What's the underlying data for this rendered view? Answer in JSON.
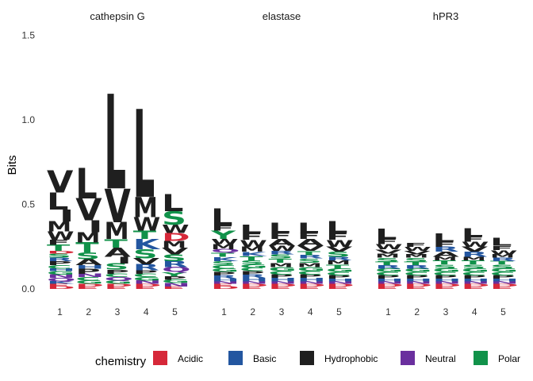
{
  "chart_data": {
    "type": "sequence-logo",
    "ylabel": "Bits",
    "ylim": [
      0,
      1.5
    ],
    "yticks": [
      "0.0",
      "0.5",
      "1.0",
      "1.5"
    ],
    "positions": [
      "1",
      "2",
      "3",
      "4",
      "5"
    ],
    "legend": {
      "title": "chemistry",
      "items": [
        {
          "label": "Acidic",
          "color": "#d62839"
        },
        {
          "label": "Basic",
          "color": "#2356a0"
        },
        {
          "label": "Hydrophobic",
          "color": "#1f1f1f"
        },
        {
          "label": "Neutral",
          "color": "#6a2f9e"
        },
        {
          "label": "Polar",
          "color": "#11924a"
        }
      ]
    },
    "panels": [
      {
        "name": "cathepsin G",
        "positions": [
          {
            "pos": "1",
            "letters": [
              [
                "D",
                0.015
              ],
              [
                "E",
                0.015
              ],
              [
                "K",
                0.015
              ],
              [
                "Q",
                0.02
              ],
              [
                "N",
                0.02
              ],
              [
                "G",
                0.02
              ],
              [
                "H",
                0.015
              ],
              [
                "C",
                0.02
              ],
              [
                "P",
                0.025
              ],
              [
                "R",
                0.02
              ],
              [
                "S",
                0.025
              ],
              [
                "D",
                0.015
              ],
              [
                "T",
                0.035
              ],
              [
                "F",
                0.03
              ],
              [
                "W",
                0.05
              ],
              [
                "M",
                0.06
              ],
              [
                "I",
                0.07
              ],
              [
                "L",
                0.1
              ],
              [
                "V",
                0.13
              ]
            ]
          },
          {
            "pos": "2",
            "letters": [
              [
                "E",
                0.015
              ],
              [
                "D",
                0.015
              ],
              [
                "G",
                0.02
              ],
              [
                "C",
                0.02
              ],
              [
                "N",
                0.02
              ],
              [
                "P",
                0.03
              ],
              [
                "H",
                0.02
              ],
              [
                "A",
                0.035
              ],
              [
                "S",
                0.04
              ],
              [
                "T",
                0.06
              ],
              [
                "M",
                0.06
              ],
              [
                "I",
                0.07
              ],
              [
                "V",
                0.13
              ],
              [
                "L",
                0.18
              ]
            ]
          },
          {
            "pos": "3",
            "letters": [
              [
                "E",
                0.015
              ],
              [
                "D",
                0.015
              ],
              [
                "G",
                0.02
              ],
              [
                "Q",
                0.02
              ],
              [
                "C",
                0.02
              ],
              [
                "P",
                0.025
              ],
              [
                "S",
                0.035
              ],
              [
                "I",
                0.04
              ],
              [
                "A",
                0.055
              ],
              [
                "T",
                0.05
              ],
              [
                "M",
                0.1
              ],
              [
                "V",
                0.2
              ],
              [
                "L",
                0.56
              ]
            ]
          },
          {
            "pos": "4",
            "letters": [
              [
                "E",
                0.015
              ],
              [
                "D",
                0.015
              ],
              [
                "N",
                0.02
              ],
              [
                "G",
                0.02
              ],
              [
                "C",
                0.02
              ],
              [
                "P",
                0.02
              ],
              [
                "R",
                0.035
              ],
              [
                "V",
                0.035
              ],
              [
                "S",
                0.055
              ],
              [
                "K",
                0.06
              ],
              [
                "T",
                0.05
              ],
              [
                "W",
                0.08
              ],
              [
                "M",
                0.12
              ],
              [
                "L",
                0.52
              ]
            ]
          },
          {
            "pos": "5",
            "letters": [
              [
                "E",
                0.015
              ],
              [
                "N",
                0.02
              ],
              [
                "G",
                0.02
              ],
              [
                "P",
                0.02
              ],
              [
                "Y",
                0.025
              ],
              [
                "Q",
                0.03
              ],
              [
                "R",
                0.035
              ],
              [
                "S",
                0.04
              ],
              [
                "V",
                0.04
              ],
              [
                "M",
                0.04
              ],
              [
                "D",
                0.045
              ],
              [
                "W",
                0.05
              ],
              [
                "S",
                0.08
              ],
              [
                "L",
                0.1
              ]
            ]
          }
        ]
      },
      {
        "name": "elastase",
        "positions": [
          {
            "pos": "1",
            "letters": [
              [
                "D",
                0.015
              ],
              [
                "E",
                0.015
              ],
              [
                "N",
                0.015
              ],
              [
                "H",
                0.015
              ],
              [
                "R",
                0.02
              ],
              [
                "P",
                0.02
              ],
              [
                "G",
                0.02
              ],
              [
                "C",
                0.02
              ],
              [
                "S",
                0.025
              ],
              [
                "K",
                0.025
              ],
              [
                "T",
                0.025
              ],
              [
                "Q",
                0.02
              ],
              [
                "M",
                0.03
              ],
              [
                "W",
                0.03
              ],
              [
                "Y",
                0.05
              ],
              [
                "F",
                0.03
              ],
              [
                "L",
                0.1
              ]
            ]
          },
          {
            "pos": "2",
            "letters": [
              [
                "E",
                0.015
              ],
              [
                "D",
                0.015
              ],
              [
                "N",
                0.015
              ],
              [
                "H",
                0.02
              ],
              [
                "R",
                0.02
              ],
              [
                "P",
                0.02
              ],
              [
                "C",
                0.02
              ],
              [
                "G",
                0.02
              ],
              [
                "S",
                0.025
              ],
              [
                "T",
                0.025
              ],
              [
                "K",
                0.025
              ],
              [
                "M",
                0.03
              ],
              [
                "W",
                0.04
              ],
              [
                "F",
                0.04
              ],
              [
                "L",
                0.05
              ]
            ]
          },
          {
            "pos": "3",
            "letters": [
              [
                "E",
                0.015
              ],
              [
                "D",
                0.015
              ],
              [
                "N",
                0.015
              ],
              [
                "H",
                0.02
              ],
              [
                "P",
                0.02
              ],
              [
                "C",
                0.02
              ],
              [
                "G",
                0.025
              ],
              [
                "M",
                0.025
              ],
              [
                "T",
                0.025
              ],
              [
                "S",
                0.025
              ],
              [
                "R",
                0.02
              ],
              [
                "W",
                0.03
              ],
              [
                "A",
                0.04
              ],
              [
                "F",
                0.035
              ],
              [
                "L",
                0.06
              ]
            ]
          },
          {
            "pos": "4",
            "letters": [
              [
                "E",
                0.015
              ],
              [
                "D",
                0.015
              ],
              [
                "N",
                0.015
              ],
              [
                "H",
                0.02
              ],
              [
                "P",
                0.02
              ],
              [
                "C",
                0.02
              ],
              [
                "G",
                0.025
              ],
              [
                "M",
                0.025
              ],
              [
                "S",
                0.025
              ],
              [
                "R",
                0.02
              ],
              [
                "T",
                0.025
              ],
              [
                "V",
                0.03
              ],
              [
                "A",
                0.04
              ],
              [
                "F",
                0.035
              ],
              [
                "L",
                0.06
              ]
            ]
          },
          {
            "pos": "5",
            "letters": [
              [
                "E",
                0.015
              ],
              [
                "D",
                0.015
              ],
              [
                "N",
                0.015
              ],
              [
                "H",
                0.015
              ],
              [
                "P",
                0.02
              ],
              [
                "C",
                0.02
              ],
              [
                "G",
                0.02
              ],
              [
                "T",
                0.025
              ],
              [
                "M",
                0.025
              ],
              [
                "R",
                0.02
              ],
              [
                "S",
                0.03
              ],
              [
                "V",
                0.03
              ],
              [
                "W",
                0.04
              ],
              [
                "F",
                0.04
              ],
              [
                "L",
                0.07
              ]
            ]
          }
        ]
      },
      {
        "name": "hPR3",
        "positions": [
          {
            "pos": "1",
            "letters": [
              [
                "E",
                0.015
              ],
              [
                "D",
                0.015
              ],
              [
                "N",
                0.015
              ],
              [
                "H",
                0.015
              ],
              [
                "P",
                0.02
              ],
              [
                "C",
                0.02
              ],
              [
                "G",
                0.02
              ],
              [
                "R",
                0.02
              ],
              [
                "T",
                0.02
              ],
              [
                "S",
                0.025
              ],
              [
                "M",
                0.025
              ],
              [
                "V",
                0.025
              ],
              [
                "W",
                0.03
              ],
              [
                "F",
                0.03
              ],
              [
                "L",
                0.06
              ]
            ]
          },
          {
            "pos": "2",
            "letters": [
              [
                "E",
                0.015
              ],
              [
                "D",
                0.015
              ],
              [
                "N",
                0.015
              ],
              [
                "H",
                0.015
              ],
              [
                "P",
                0.02
              ],
              [
                "C",
                0.02
              ],
              [
                "G",
                0.02
              ],
              [
                "R",
                0.02
              ],
              [
                "T",
                0.02
              ],
              [
                "S",
                0.025
              ],
              [
                "M",
                0.02
              ],
              [
                "V",
                0.02
              ],
              [
                "W",
                0.025
              ],
              [
                "F",
                0.025
              ]
            ]
          },
          {
            "pos": "3",
            "letters": [
              [
                "E",
                0.015
              ],
              [
                "D",
                0.015
              ],
              [
                "N",
                0.015
              ],
              [
                "H",
                0.015
              ],
              [
                "P",
                0.02
              ],
              [
                "C",
                0.02
              ],
              [
                "G",
                0.02
              ],
              [
                "S",
                0.025
              ],
              [
                "T",
                0.025
              ],
              [
                "M",
                0.02
              ],
              [
                "A",
                0.03
              ],
              [
                "R",
                0.03
              ],
              [
                "F",
                0.03
              ],
              [
                "L",
                0.05
              ]
            ]
          },
          {
            "pos": "4",
            "letters": [
              [
                "E",
                0.015
              ],
              [
                "D",
                0.015
              ],
              [
                "N",
                0.015
              ],
              [
                "H",
                0.015
              ],
              [
                "P",
                0.02
              ],
              [
                "C",
                0.02
              ],
              [
                "G",
                0.02
              ],
              [
                "S",
                0.025
              ],
              [
                "T",
                0.025
              ],
              [
                "M",
                0.02
              ],
              [
                "R",
                0.03
              ],
              [
                "V",
                0.03
              ],
              [
                "W",
                0.03
              ],
              [
                "F",
                0.03
              ],
              [
                "L",
                0.05
              ]
            ]
          },
          {
            "pos": "5",
            "letters": [
              [
                "E",
                0.015
              ],
              [
                "D",
                0.015
              ],
              [
                "N",
                0.015
              ],
              [
                "H",
                0.015
              ],
              [
                "P",
                0.02
              ],
              [
                "C",
                0.02
              ],
              [
                "G",
                0.02
              ],
              [
                "S",
                0.025
              ],
              [
                "T",
                0.02
              ],
              [
                "R",
                0.02
              ],
              [
                "M",
                0.02
              ],
              [
                "W",
                0.025
              ],
              [
                "F",
                0.025
              ],
              [
                "L",
                0.045
              ]
            ]
          }
        ]
      }
    ]
  }
}
